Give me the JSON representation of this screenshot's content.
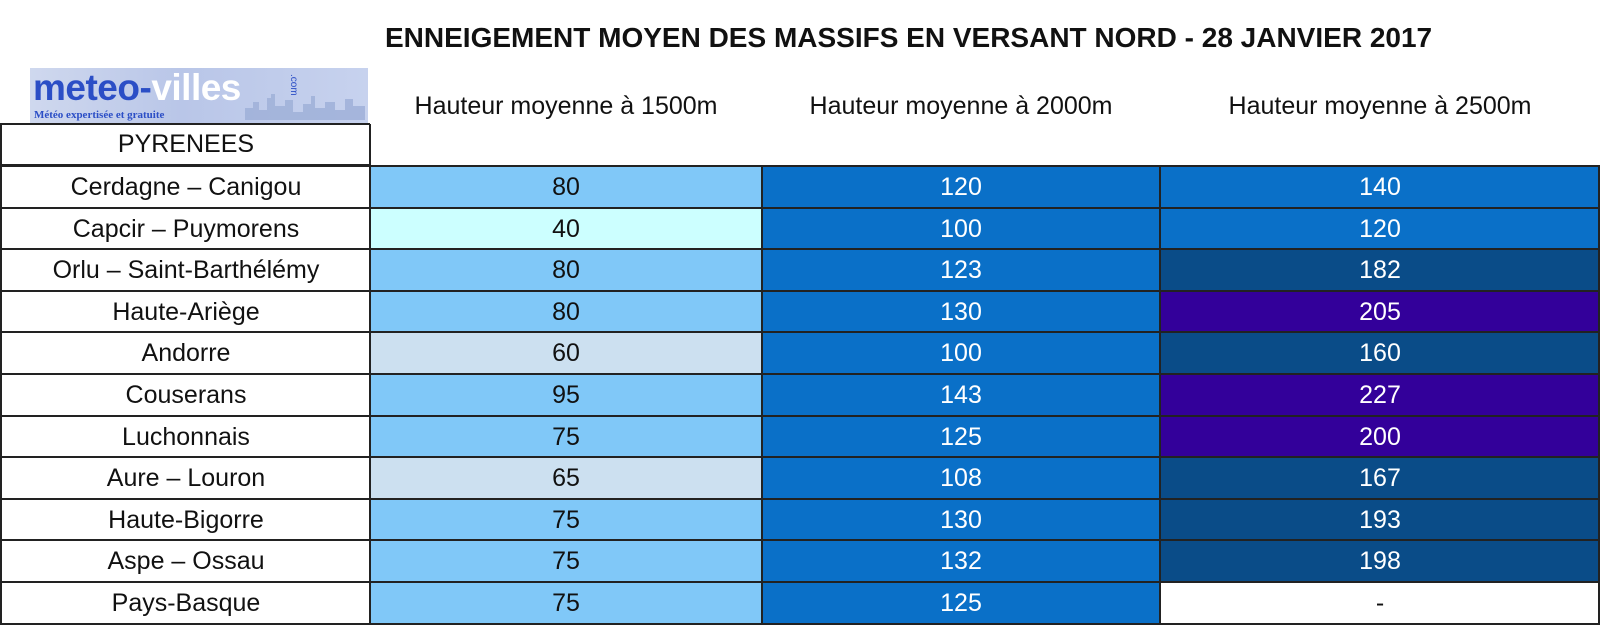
{
  "title": "ENNEIGEMENT MOYEN DES MASSIFS EN VERSANT NORD - 28 JANVIER 2017",
  "logo": {
    "name_part1": "meteo-",
    "name_part2": "villes",
    "suffix": ".com",
    "tagline": "Météo expertisée et gratuite"
  },
  "colors": {
    "v40": "#ccffff",
    "v60_65": "#cce0f0",
    "v75_95": "#80c8f8",
    "v100_143": "#0a70c8",
    "v160_198": "#0a4c88",
    "v200_plus": "#33009a",
    "empty": "#ffffff"
  },
  "chart_data": {
    "type": "table",
    "title": "ENNEIGEMENT MOYEN DES MASSIFS EN VERSANT NORD - 28 JANVIER 2017",
    "group_label": "PYRENEES",
    "columns": [
      "Hauteur moyenne à 1500m",
      "Hauteur moyenne à 2000m",
      "Hauteur moyenne à 2500m"
    ],
    "rows": [
      {
        "massif": "Cerdagne – Canigou",
        "values": [
          "80",
          "120",
          "140"
        ]
      },
      {
        "massif": "Capcir – Puymorens",
        "values": [
          "40",
          "100",
          "120"
        ]
      },
      {
        "massif": "Orlu – Saint-Barthélémy",
        "values": [
          "80",
          "123",
          "182"
        ]
      },
      {
        "massif": "Haute-Ariège",
        "values": [
          "80",
          "130",
          "205"
        ]
      },
      {
        "massif": "Andorre",
        "values": [
          "60",
          "100",
          "160"
        ]
      },
      {
        "massif": "Couserans",
        "values": [
          "95",
          "143",
          "227"
        ]
      },
      {
        "massif": "Luchonnais",
        "values": [
          "75",
          "125",
          "200"
        ]
      },
      {
        "massif": "Aure – Louron",
        "values": [
          "65",
          "108",
          "167"
        ]
      },
      {
        "massif": "Haute-Bigorre",
        "values": [
          "75",
          "130",
          "193"
        ]
      },
      {
        "massif": "Aspe – Ossau",
        "values": [
          "75",
          "132",
          "198"
        ]
      },
      {
        "massif": "Pays-Basque",
        "values": [
          "75",
          "125",
          "-"
        ]
      }
    ]
  }
}
